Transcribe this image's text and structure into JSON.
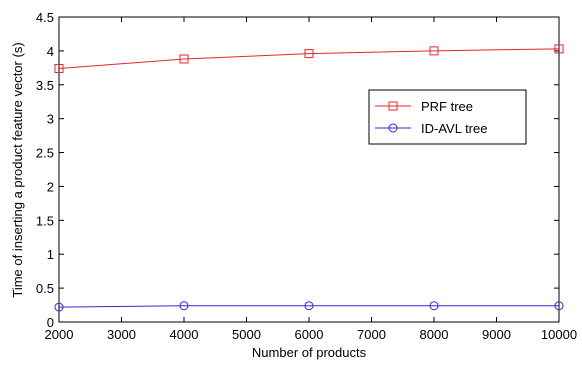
{
  "chart_data": {
    "type": "line",
    "title": "",
    "xlabel": "Number of products",
    "ylabel": "Time of inserting a product feature vector (s)",
    "x": [
      2000,
      4000,
      6000,
      8000,
      10000
    ],
    "xlim": [
      2000,
      10000
    ],
    "ylim": [
      0,
      4.5
    ],
    "xticks": [
      2000,
      3000,
      4000,
      5000,
      6000,
      7000,
      8000,
      9000,
      10000
    ],
    "yticks": [
      0,
      0.5,
      1,
      1.5,
      2,
      2.5,
      3,
      3.5,
      4,
      4.5
    ],
    "xtick_labels": [
      "2000",
      "3000",
      "4000",
      "5000",
      "6000",
      "7000",
      "8000",
      "9000",
      "10000"
    ],
    "ytick_labels": [
      "0",
      "0.5",
      "1",
      "1.5",
      "2",
      "2.5",
      "3",
      "3.5",
      "4",
      "4.5"
    ],
    "grid": false,
    "legend_position": "upper-right",
    "series": [
      {
        "name": "PRF tree",
        "values": [
          3.74,
          3.88,
          3.96,
          4.0,
          4.03
        ],
        "color": "#e8262c",
        "marker": "square"
      },
      {
        "name": "ID-AVL tree",
        "values": [
          0.22,
          0.24,
          0.24,
          0.24,
          0.24
        ],
        "color": "#2b2bd8",
        "marker": "circle"
      }
    ]
  }
}
